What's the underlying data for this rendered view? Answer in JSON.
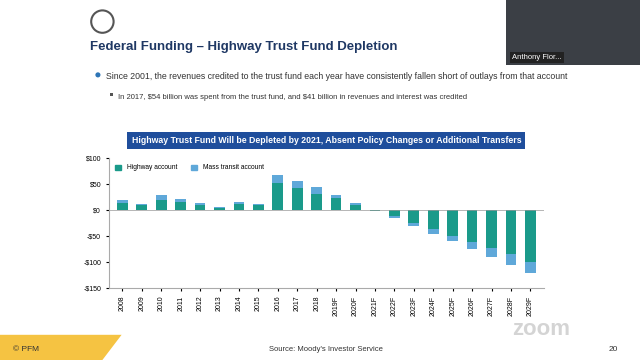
{
  "slide": {
    "title": "Federal Funding – Highway Trust Fund Depletion",
    "bullets": [
      {
        "text": "Since 2001, the revenues credited to the trust fund each year have consistently fallen short of outlays from that account",
        "sub": [
          "In 2017, $54 billion was spent from the trust fund, and $41 billion in revenues and interest was credited"
        ]
      }
    ],
    "footer": {
      "copyright": "© PFM",
      "source": "Source: Moody's Investor Service",
      "page": 20
    }
  },
  "video": {
    "participant": "Anthony Flor..."
  },
  "app": {
    "watermark": "zoom"
  },
  "chart_data": {
    "type": "bar",
    "stacked": true,
    "title": "Highway Trust Fund Will be Depleted by 2021, Absent Policy Changes or Additional Transfers",
    "categories": [
      "2008",
      "2009",
      "2010",
      "2011",
      "2012",
      "2013",
      "2014",
      "2015",
      "2016",
      "2017",
      "2018",
      "2019F",
      "2020F",
      "2021F",
      "2022F",
      "2023F",
      "2024F",
      "2025F",
      "2026F",
      "2027F",
      "2028F",
      "2029F"
    ],
    "series": [
      {
        "name": "Highway account",
        "color": "#1a9a8a",
        "values": [
          14,
          10,
          20,
          15,
          11,
          5,
          13,
          11,
          52,
          42,
          32,
          23,
          11,
          -1,
          -12,
          -25,
          -37,
          -49,
          -61,
          -73,
          -85,
          -100
        ]
      },
      {
        "name": "Mass transit account",
        "color": "#5fa8d9",
        "values": [
          5,
          2,
          9,
          6,
          3,
          1,
          3,
          1,
          16,
          14,
          13,
          6,
          3,
          -1,
          -3,
          -5,
          -8,
          -11,
          -14,
          -17,
          -20,
          -22
        ]
      }
    ],
    "ylim": [
      -150,
      100
    ],
    "yticks": [
      {
        "value": -150,
        "label": "-$150"
      },
      {
        "value": -100,
        "label": "-$100"
      },
      {
        "value": -50,
        "label": "-$50"
      },
      {
        "value": 0,
        "label": "$0"
      },
      {
        "value": 50,
        "label": "$50"
      },
      {
        "value": 100,
        "label": "$100"
      }
    ],
    "legend": "upper left",
    "grid": false
  }
}
